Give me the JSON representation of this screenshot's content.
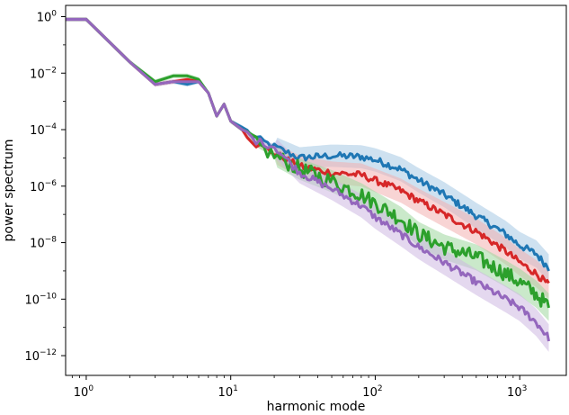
{
  "chart_data": {
    "type": "line",
    "xlabel": "harmonic mode",
    "ylabel": "power spectrum",
    "xscale": "log",
    "yscale": "log",
    "xlim": [
      0.72,
      2100
    ],
    "ylim": [
      2e-13,
      2.5
    ],
    "grid": false,
    "x_ticks": [
      {
        "value": 1,
        "base": "10",
        "exp": "0"
      },
      {
        "value": 10,
        "base": "10",
        "exp": "1"
      },
      {
        "value": 100,
        "base": "10",
        "exp": "2"
      },
      {
        "value": 1000,
        "base": "10",
        "exp": "3"
      }
    ],
    "y_ticks": [
      {
        "value": 1,
        "base": "10",
        "exp": "0"
      },
      {
        "value": 0.01,
        "base": "10",
        "exp": "-2"
      },
      {
        "value": 0.0001,
        "base": "10",
        "exp": "-4"
      },
      {
        "value": 1e-06,
        "base": "10",
        "exp": "-6"
      },
      {
        "value": 1e-08,
        "base": "10",
        "exp": "-8"
      },
      {
        "value": 1e-10,
        "base": "10",
        "exp": "-10"
      },
      {
        "value": 1e-12,
        "base": "10",
        "exp": "-12"
      }
    ],
    "series": [
      {
        "color": "#1f77b4",
        "band_color": "#a6c8e4",
        "x": [
          0.72,
          1,
          2,
          3,
          4,
          5,
          6,
          7,
          8,
          9,
          10,
          12,
          15,
          20,
          30,
          50,
          80,
          100,
          150,
          200,
          300,
          500,
          800,
          1000,
          1300,
          1600
        ],
        "y": [
          0.8,
          0.8,
          0.025,
          0.004,
          0.005,
          0.004,
          0.005,
          0.002,
          0.0003,
          0.0008,
          0.0002,
          0.00012,
          5e-05,
          2.5e-05,
          1e-05,
          1.2e-05,
          1.1e-05,
          8.5e-06,
          4e-06,
          1.6e-06,
          5e-07,
          9e-08,
          2e-08,
          8e-09,
          4e-09,
          1.2e-09
        ]
      },
      {
        "color": "#d62728",
        "band_color": "#f2b0b0",
        "x": [
          0.72,
          1,
          2,
          3,
          4,
          5,
          6,
          7,
          8,
          9,
          10,
          12,
          15,
          20,
          30,
          50,
          80,
          100,
          150,
          200,
          300,
          500,
          800,
          1000,
          1300,
          1600
        ],
        "y": [
          0.8,
          0.8,
          0.025,
          0.004,
          0.005,
          0.006,
          0.005,
          0.002,
          0.0003,
          0.0008,
          0.0002,
          0.0001,
          3e-05,
          1.5e-05,
          5e-06,
          3e-06,
          2.5e-06,
          1.6e-06,
          7e-07,
          3e-07,
          1e-07,
          2.5e-08,
          5e-09,
          2e-09,
          8e-10,
          3e-10
        ]
      },
      {
        "color": "#2ca02c",
        "band_color": "#9fd79f",
        "x": [
          0.72,
          1,
          2,
          3,
          4,
          5,
          6,
          7,
          8,
          9,
          10,
          12,
          15,
          20,
          30,
          50,
          80,
          100,
          150,
          200,
          300,
          500,
          800,
          1000,
          1300,
          1600
        ],
        "y": [
          0.8,
          0.8,
          0.025,
          0.005,
          0.008,
          0.008,
          0.006,
          0.002,
          0.0003,
          0.0008,
          0.0002,
          0.0001,
          3e-05,
          1.2e-05,
          4e-06,
          1.5e-06,
          5e-07,
          2.5e-07,
          7e-08,
          2e-08,
          7e-09,
          3e-09,
          8e-10,
          4e-10,
          1.5e-10,
          5e-11
        ]
      },
      {
        "color": "#9467bd",
        "band_color": "#cdb8e2",
        "x": [
          0.72,
          1,
          2,
          3,
          4,
          5,
          6,
          7,
          8,
          9,
          10,
          12,
          15,
          20,
          30,
          50,
          80,
          100,
          150,
          200,
          300,
          500,
          800,
          1000,
          1300,
          1600
        ],
        "y": [
          0.8,
          0.8,
          0.025,
          0.004,
          0.005,
          0.005,
          0.005,
          0.002,
          0.0003,
          0.0008,
          0.0002,
          0.0001,
          4e-05,
          2.5e-05,
          3e-06,
          8e-07,
          2e-07,
          8e-08,
          2e-08,
          7e-09,
          2e-09,
          4e-10,
          1e-10,
          5e-11,
          1.5e-11,
          4e-12
        ]
      }
    ]
  }
}
